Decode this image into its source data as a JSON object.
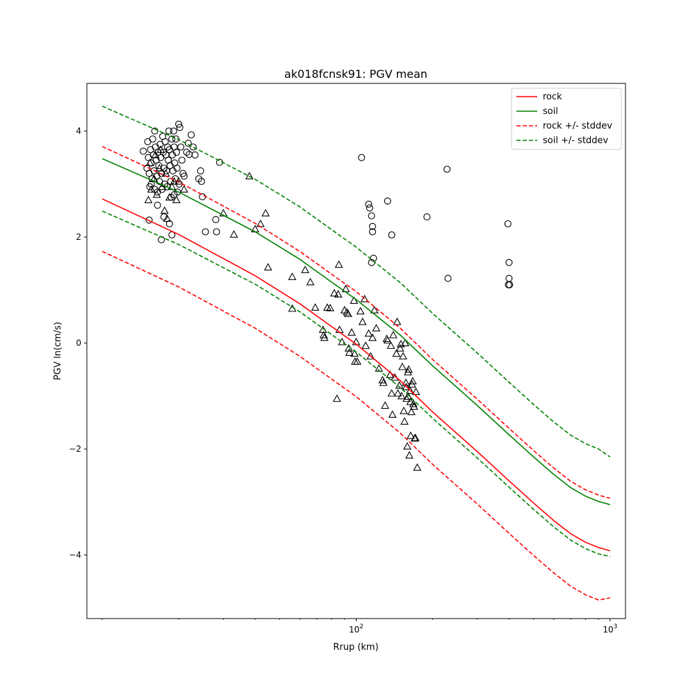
{
  "chart_data": {
    "type": "scatter",
    "title": "ak018fcnsk91: PGV mean",
    "xlabel": "Rrup (km)",
    "ylabel": "PGV ln(cm/s)",
    "xscale": "log",
    "xlim": [
      8.7,
      1150
    ],
    "ylim": [
      -5.2,
      4.9
    ],
    "x_ticks": [
      {
        "value": 100,
        "base": "10",
        "exp": "2"
      },
      {
        "value": 1000,
        "base": "10",
        "exp": "3"
      }
    ],
    "y_ticks": [
      {
        "value": 4,
        "label": "4"
      },
      {
        "value": 2,
        "label": "2"
      },
      {
        "value": 0,
        "label": "0"
      },
      {
        "value": -2,
        "label": "−2"
      },
      {
        "value": -4,
        "label": "−4"
      }
    ],
    "legend_position": "top-right",
    "grid": false,
    "series": [
      {
        "name": "rock",
        "style": "solid",
        "color": "#ff0000",
        "x": [
          10,
          20,
          40,
          60,
          80,
          100,
          150,
          200,
          300,
          400,
          500,
          600,
          700,
          800,
          900,
          1000
        ],
        "y": [
          2.72,
          2.05,
          1.27,
          0.74,
          0.31,
          -0.02,
          -0.72,
          -1.3,
          -2.05,
          -2.6,
          -3.02,
          -3.35,
          -3.6,
          -3.76,
          -3.86,
          -3.92
        ]
      },
      {
        "name": "soil",
        "style": "solid",
        "color": "#008000",
        "x": [
          10,
          20,
          40,
          60,
          80,
          100,
          150,
          200,
          300,
          400,
          500,
          600,
          700,
          800,
          900,
          1000
        ],
        "y": [
          3.48,
          2.85,
          2.1,
          1.58,
          1.15,
          0.82,
          0.14,
          -0.43,
          -1.18,
          -1.73,
          -2.15,
          -2.48,
          -2.73,
          -2.89,
          -2.99,
          -3.05
        ]
      },
      {
        "name": "rock +/- stddev",
        "style": "dashed",
        "color": "#ff0000",
        "x": [
          10,
          20,
          40,
          60,
          80,
          100,
          150,
          200,
          300,
          400,
          500,
          600,
          700,
          800,
          900,
          1000
        ],
        "y": [
          3.71,
          3.04,
          2.26,
          1.73,
          1.3,
          0.97,
          0.27,
          -0.31,
          -1.06,
          -1.61,
          -2.03,
          -2.36,
          -2.61,
          -2.77,
          -2.87,
          -2.93
        ]
      },
      {
        "name": "",
        "style": "dashed",
        "color": "#ff0000",
        "x": [
          10,
          20,
          40,
          60,
          80,
          100,
          150,
          200,
          300,
          400,
          500,
          600,
          700,
          800,
          900,
          1000
        ],
        "y": [
          1.73,
          1.06,
          0.28,
          -0.25,
          -0.68,
          -1.01,
          -1.71,
          -2.29,
          -3.04,
          -3.59,
          -4.01,
          -4.34,
          -4.59,
          -4.75,
          -4.85,
          -4.81
        ]
      },
      {
        "name": "soil +/- stddev",
        "style": "dashed",
        "color": "#008000",
        "x": [
          10,
          20,
          40,
          60,
          80,
          100,
          150,
          200,
          300,
          400,
          500,
          600,
          700,
          800,
          900,
          1000
        ],
        "y": [
          4.47,
          3.84,
          3.09,
          2.57,
          2.14,
          1.81,
          1.13,
          0.56,
          -0.19,
          -0.74,
          -1.16,
          -1.49,
          -1.74,
          -1.9,
          -2.0,
          -2.15
        ]
      },
      {
        "name": "",
        "style": "dashed",
        "color": "#008000",
        "x": [
          10,
          20,
          40,
          60,
          80,
          100,
          150,
          200,
          300,
          400,
          500,
          600,
          700,
          800,
          900,
          1000
        ],
        "y": [
          2.49,
          1.86,
          1.11,
          0.59,
          0.16,
          -0.17,
          -0.85,
          -1.42,
          -2.17,
          -2.72,
          -3.14,
          -3.47,
          -3.72,
          -3.88,
          -3.98,
          -4.03
        ]
      }
    ],
    "scatter_circles": [
      [
        14.5,
        3.62
      ],
      [
        15.0,
        3.3
      ],
      [
        15.1,
        3.8
      ],
      [
        15.2,
        3.5
      ],
      [
        15.3,
        3.2
      ],
      [
        15.4,
        2.95
      ],
      [
        15.5,
        3.65
      ],
      [
        15.6,
        3.4
      ],
      [
        15.7,
        3.1
      ],
      [
        15.8,
        3.85
      ],
      [
        15.9,
        3.55
      ],
      [
        16.0,
        3.25
      ],
      [
        16.1,
        4.0
      ],
      [
        16.2,
        3.7
      ],
      [
        16.3,
        3.45
      ],
      [
        16.4,
        3.15
      ],
      [
        16.5,
        2.85
      ],
      [
        16.6,
        3.6
      ],
      [
        16.7,
        3.35
      ],
      [
        16.8,
        3.05
      ],
      [
        16.9,
        3.75
      ],
      [
        17.0,
        3.5
      ],
      [
        17.1,
        3.2
      ],
      [
        17.2,
        2.9
      ],
      [
        17.3,
        3.9
      ],
      [
        17.4,
        3.6
      ],
      [
        17.5,
        3.3
      ],
      [
        17.6,
        3.0
      ],
      [
        17.7,
        3.8
      ],
      [
        17.8,
        3.55
      ],
      [
        17.9,
        3.25
      ],
      [
        18.0,
        2.95
      ],
      [
        18.1,
        3.7
      ],
      [
        18.2,
        3.45
      ],
      [
        18.3,
        4.0
      ],
      [
        18.4,
        3.65
      ],
      [
        18.5,
        3.35
      ],
      [
        18.6,
        3.05
      ],
      [
        18.7,
        2.75
      ],
      [
        18.8,
        3.85
      ],
      [
        18.9,
        3.55
      ],
      [
        19.0,
        3.25
      ],
      [
        19.1,
        4.0
      ],
      [
        19.2,
        3.7
      ],
      [
        19.3,
        3.4
      ],
      [
        19.4,
        3.1
      ],
      [
        19.5,
        3.85
      ],
      [
        19.6,
        3.6
      ],
      [
        19.7,
        3.3
      ],
      [
        19.8,
        2.85
      ],
      [
        20.0,
        4.13
      ],
      [
        20.2,
        4.07
      ],
      [
        20.4,
        3.7
      ],
      [
        20.6,
        3.45
      ],
      [
        20.8,
        3.2
      ],
      [
        21.0,
        3.15
      ],
      [
        21.5,
        3.6
      ],
      [
        21.8,
        3.77
      ],
      [
        22.0,
        3.56
      ],
      [
        22.4,
        3.93
      ],
      [
        22.8,
        3.7
      ],
      [
        23.2,
        3.55
      ],
      [
        24.0,
        3.1
      ],
      [
        24.4,
        3.25
      ],
      [
        24.6,
        3.05
      ],
      [
        24.8,
        2.76
      ],
      [
        25.5,
        2.1
      ],
      [
        28.0,
        2.33
      ],
      [
        28.2,
        2.1
      ],
      [
        29.0,
        3.41
      ],
      [
        15.3,
        2.32
      ],
      [
        17.1,
        1.95
      ],
      [
        18.4,
        2.25
      ],
      [
        18.8,
        2.04
      ],
      [
        17.5,
        2.38
      ],
      [
        19.2,
        2.8
      ],
      [
        20.1,
        3.0
      ],
      [
        16.5,
        2.6
      ],
      [
        16.1,
        2.9
      ],
      [
        15.6,
        3.0
      ],
      [
        105,
        3.5
      ],
      [
        112,
        2.62
      ],
      [
        113,
        2.55
      ],
      [
        115,
        2.4
      ],
      [
        116,
        2.2
      ],
      [
        116,
        2.1
      ],
      [
        115,
        1.52
      ],
      [
        117,
        1.6
      ],
      [
        133,
        2.68
      ],
      [
        138,
        2.04
      ],
      [
        190,
        2.38
      ],
      [
        228,
        3.28
      ],
      [
        230,
        1.22
      ],
      [
        396,
        2.25
      ],
      [
        400,
        1.52
      ],
      [
        400,
        1.22
      ],
      [
        398,
        1.1
      ],
      [
        402,
        1.1
      ]
    ],
    "scatter_triangles": [
      [
        15.2,
        2.7
      ],
      [
        15.6,
        2.9
      ],
      [
        16.0,
        3.1
      ],
      [
        16.4,
        2.8
      ],
      [
        16.8,
        3.3
      ],
      [
        17.2,
        2.95
      ],
      [
        17.6,
        2.5
      ],
      [
        18.0,
        2.35
      ],
      [
        18.4,
        2.75
      ],
      [
        18.8,
        2.95
      ],
      [
        19.2,
        3.05
      ],
      [
        19.6,
        2.7
      ],
      [
        20.0,
        3.05
      ],
      [
        21.0,
        2.9
      ],
      [
        15.4,
        3.4
      ],
      [
        16.2,
        3.55
      ],
      [
        17.0,
        3.65
      ],
      [
        17.8,
        3.2
      ],
      [
        30.0,
        2.45
      ],
      [
        33.0,
        2.05
      ],
      [
        38.0,
        3.15
      ],
      [
        40.0,
        2.15
      ],
      [
        42.0,
        2.25
      ],
      [
        44.0,
        2.45
      ],
      [
        45.0,
        1.43
      ],
      [
        56.0,
        1.25
      ],
      [
        56.0,
        0.65
      ],
      [
        63.0,
        1.38
      ],
      [
        66.0,
        1.15
      ],
      [
        69.0,
        0.67
      ],
      [
        74.0,
        0.25
      ],
      [
        74.5,
        0.15
      ],
      [
        75.0,
        0.1
      ],
      [
        77.0,
        0.67
      ],
      [
        79.0,
        0.66
      ],
      [
        82.0,
        0.94
      ],
      [
        85.0,
        0.92
      ],
      [
        85.5,
        1.48
      ],
      [
        86.0,
        0.25
      ],
      [
        88.0,
        0.02
      ],
      [
        90.0,
        0.62
      ],
      [
        91.0,
        1.02
      ],
      [
        92.0,
        0.58
      ],
      [
        93.0,
        0.55
      ],
      [
        93.5,
        -0.1
      ],
      [
        94.0,
        -0.18
      ],
      [
        96.0,
        0.2
      ],
      [
        98.0,
        0.8
      ],
      [
        98.5,
        -0.2
      ],
      [
        99.0,
        -0.35
      ],
      [
        100.0,
        0.02
      ],
      [
        101.0,
        -0.35
      ],
      [
        104.0,
        0.6
      ],
      [
        106.0,
        0.4
      ],
      [
        108.0,
        0.83
      ],
      [
        109.0,
        -0.05
      ],
      [
        112.0,
        0.18
      ],
      [
        114.0,
        -0.25
      ],
      [
        116.0,
        0.1
      ],
      [
        118.0,
        0.62
      ],
      [
        120.0,
        0.28
      ],
      [
        123.0,
        -0.48
      ],
      [
        127.0,
        -0.7
      ],
      [
        128.0,
        -0.75
      ],
      [
        130.0,
        -1.18
      ],
      [
        132.0,
        0.08
      ],
      [
        133.0,
        0.05
      ],
      [
        136.0,
        -0.6
      ],
      [
        138.0,
        -0.95
      ],
      [
        139.0,
        -1.35
      ],
      [
        140.0,
        0.15
      ],
      [
        142.0,
        -0.65
      ],
      [
        144.0,
        -0.2
      ],
      [
        146.0,
        -0.95
      ],
      [
        148.0,
        -0.8
      ],
      [
        150.0,
        -0.02
      ],
      [
        151.0,
        -1.0
      ],
      [
        152.0,
        -0.45
      ],
      [
        153.0,
        -0.25
      ],
      [
        154.0,
        -1.28
      ],
      [
        155.0,
        -1.48
      ],
      [
        156.0,
        0.0
      ],
      [
        157.0,
        -0.75
      ],
      [
        158.0,
        -1.05
      ],
      [
        159.0,
        -1.95
      ],
      [
        160.0,
        -0.55
      ],
      [
        161.0,
        -0.5
      ],
      [
        162.0,
        -2.12
      ],
      [
        163.0,
        -0.9
      ],
      [
        164.0,
        -1.75
      ],
      [
        165.0,
        -1.3
      ],
      [
        166.0,
        -0.78
      ],
      [
        168.0,
        -1.15
      ],
      [
        169.0,
        -1.2
      ],
      [
        170.0,
        -1.8
      ],
      [
        172.0,
        -0.92
      ],
      [
        174.0,
        -2.35
      ],
      [
        145.0,
        0.4
      ],
      [
        149.0,
        -0.1
      ],
      [
        137.0,
        -0.05
      ],
      [
        167.0,
        -0.72
      ],
      [
        171.0,
        -1.79
      ],
      [
        160.5,
        -1.01
      ],
      [
        84.0,
        -1.05
      ],
      [
        163.5,
        -1.11
      ],
      [
        157.5,
        -0.83
      ]
    ]
  }
}
